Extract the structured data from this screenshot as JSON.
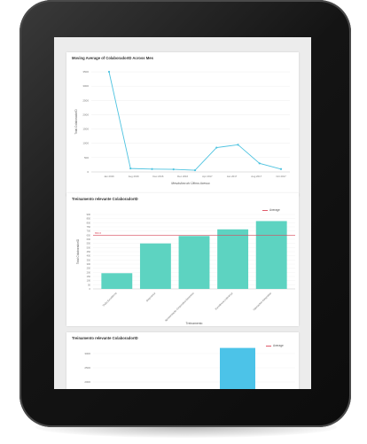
{
  "colors": {
    "line": "#4ec3e0",
    "bar": "#5dd3c1",
    "bar_blue": "#4cc3e8",
    "average": "#d94a5c"
  },
  "chart_data": [
    {
      "type": "line",
      "title": "Moving Average of ColaboradorID Across Mes",
      "xlabel": "MesdoAno do Último Acesso",
      "ylabel": "Total ColaboradorID",
      "ylim": [
        0,
        3500
      ],
      "yticks": [
        0,
        500,
        1000,
        1500,
        2000,
        2500,
        3000,
        3500
      ],
      "xtick_labels": [
        "Jan 2016",
        "Aug 2016",
        "Dec 2016",
        "Dec 2016",
        "Apr 2017",
        "Jan 2017",
        "Aug 2017",
        "Oct 2017"
      ],
      "points": [
        3500,
        120,
        100,
        90,
        60,
        850,
        950,
        300,
        100
      ]
    },
    {
      "type": "bar",
      "title": "Treinamento relevante ColaboradorID",
      "xlabel": "Treinamento",
      "ylabel": "Total ColaboradorID",
      "ylim": [
        0,
        900
      ],
      "yticks": [
        0,
        50,
        100,
        150,
        200,
        250,
        300,
        350,
        400,
        450,
        500,
        550,
        600,
        650,
        700,
        750,
        800,
        850,
        900
      ],
      "categories": [
        "Visão Excelência",
        "Segurança",
        "Apresentação Corporativa Diretrizes",
        "Excelência Liderança",
        "Operações Integradas"
      ],
      "values": [
        190,
        550,
        640,
        720,
        820
      ],
      "average_value": 650,
      "average_label": "650.6",
      "legend": "Average"
    },
    {
      "type": "bar",
      "title": "Treinamento relevante ColaboradorID",
      "legend": "Average",
      "yticks": [
        3000,
        2500,
        2000
      ],
      "values": [
        3200
      ]
    }
  ]
}
